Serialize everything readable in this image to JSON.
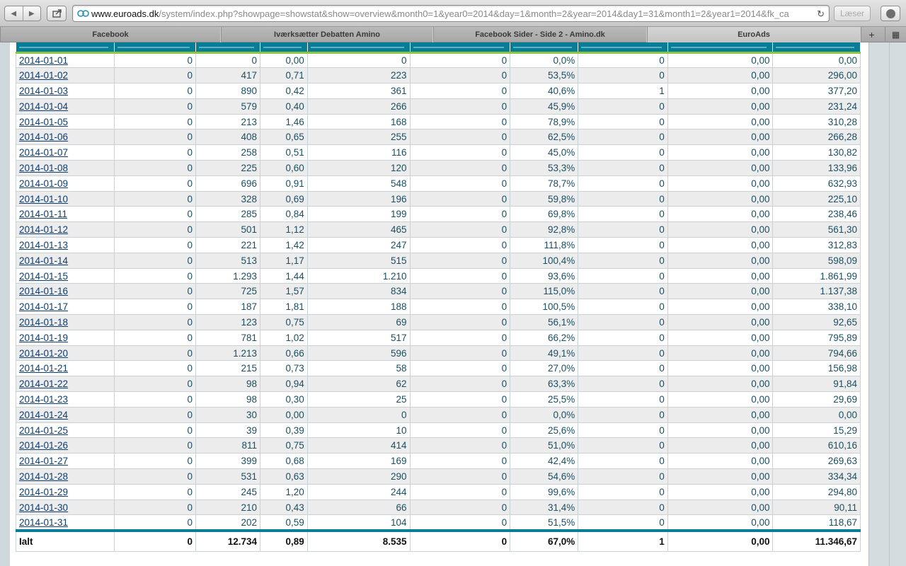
{
  "browser": {
    "url_host": "www.euroads.dk",
    "url_path": "/system/index.php?showpage=showstat&show=overview&month0=1&year0=2014&day=1&month=2&year=2014&day1=31&month1=2&year1=2014&fk_ca",
    "reader_label": "Læser",
    "tabs": [
      {
        "label": "Facebook"
      },
      {
        "label": "Iværksætter Debatten Amino"
      },
      {
        "label": "Facebook Sider - Side 2 - Amino.dk"
      },
      {
        "label": "EuroAds"
      }
    ]
  },
  "table": {
    "rows": [
      [
        "2014-01-01",
        "0",
        "0",
        "0,00",
        "0",
        "0",
        "0,0%",
        "0",
        "0,00",
        "0,00"
      ],
      [
        "2014-01-02",
        "0",
        "417",
        "0,71",
        "223",
        "0",
        "53,5%",
        "0",
        "0,00",
        "296,00"
      ],
      [
        "2014-01-03",
        "0",
        "890",
        "0,42",
        "361",
        "0",
        "40,6%",
        "1",
        "0,00",
        "377,20"
      ],
      [
        "2014-01-04",
        "0",
        "579",
        "0,40",
        "266",
        "0",
        "45,9%",
        "0",
        "0,00",
        "231,24"
      ],
      [
        "2014-01-05",
        "0",
        "213",
        "1,46",
        "168",
        "0",
        "78,9%",
        "0",
        "0,00",
        "310,28"
      ],
      [
        "2014-01-06",
        "0",
        "408",
        "0,65",
        "255",
        "0",
        "62,5%",
        "0",
        "0,00",
        "266,28"
      ],
      [
        "2014-01-07",
        "0",
        "258",
        "0,51",
        "116",
        "0",
        "45,0%",
        "0",
        "0,00",
        "130,82"
      ],
      [
        "2014-01-08",
        "0",
        "225",
        "0,60",
        "120",
        "0",
        "53,3%",
        "0",
        "0,00",
        "133,96"
      ],
      [
        "2014-01-09",
        "0",
        "696",
        "0,91",
        "548",
        "0",
        "78,7%",
        "0",
        "0,00",
        "632,93"
      ],
      [
        "2014-01-10",
        "0",
        "328",
        "0,69",
        "196",
        "0",
        "59,8%",
        "0",
        "0,00",
        "225,10"
      ],
      [
        "2014-01-11",
        "0",
        "285",
        "0,84",
        "199",
        "0",
        "69,8%",
        "0",
        "0,00",
        "238,46"
      ],
      [
        "2014-01-12",
        "0",
        "501",
        "1,12",
        "465",
        "0",
        "92,8%",
        "0",
        "0,00",
        "561,30"
      ],
      [
        "2014-01-13",
        "0",
        "221",
        "1,42",
        "247",
        "0",
        "111,8%",
        "0",
        "0,00",
        "312,83"
      ],
      [
        "2014-01-14",
        "0",
        "513",
        "1,17",
        "515",
        "0",
        "100,4%",
        "0",
        "0,00",
        "598,09"
      ],
      [
        "2014-01-15",
        "0",
        "1.293",
        "1,44",
        "1.210",
        "0",
        "93,6%",
        "0",
        "0,00",
        "1.861,99"
      ],
      [
        "2014-01-16",
        "0",
        "725",
        "1,57",
        "834",
        "0",
        "115,0%",
        "0",
        "0,00",
        "1.137,38"
      ],
      [
        "2014-01-17",
        "0",
        "187",
        "1,81",
        "188",
        "0",
        "100,5%",
        "0",
        "0,00",
        "338,10"
      ],
      [
        "2014-01-18",
        "0",
        "123",
        "0,75",
        "69",
        "0",
        "56,1%",
        "0",
        "0,00",
        "92,65"
      ],
      [
        "2014-01-19",
        "0",
        "781",
        "1,02",
        "517",
        "0",
        "66,2%",
        "0",
        "0,00",
        "795,89"
      ],
      [
        "2014-01-20",
        "0",
        "1.213",
        "0,66",
        "596",
        "0",
        "49,1%",
        "0",
        "0,00",
        "794,66"
      ],
      [
        "2014-01-21",
        "0",
        "215",
        "0,73",
        "58",
        "0",
        "27,0%",
        "0",
        "0,00",
        "156,98"
      ],
      [
        "2014-01-22",
        "0",
        "98",
        "0,94",
        "62",
        "0",
        "63,3%",
        "0",
        "0,00",
        "91,84"
      ],
      [
        "2014-01-23",
        "0",
        "98",
        "0,30",
        "25",
        "0",
        "25,5%",
        "0",
        "0,00",
        "29,69"
      ],
      [
        "2014-01-24",
        "0",
        "30",
        "0,00",
        "0",
        "0",
        "0,0%",
        "0",
        "0,00",
        "0,00"
      ],
      [
        "2014-01-25",
        "0",
        "39",
        "0,39",
        "10",
        "0",
        "25,6%",
        "0",
        "0,00",
        "15,29"
      ],
      [
        "2014-01-26",
        "0",
        "811",
        "0,75",
        "414",
        "0",
        "51,0%",
        "0",
        "0,00",
        "610,16"
      ],
      [
        "2014-01-27",
        "0",
        "399",
        "0,68",
        "169",
        "0",
        "42,4%",
        "0",
        "0,00",
        "269,63"
      ],
      [
        "2014-01-28",
        "0",
        "531",
        "0,63",
        "290",
        "0",
        "54,6%",
        "0",
        "0,00",
        "334,34"
      ],
      [
        "2014-01-29",
        "0",
        "245",
        "1,20",
        "244",
        "0",
        "99,6%",
        "0",
        "0,00",
        "294,80"
      ],
      [
        "2014-01-30",
        "0",
        "210",
        "0,43",
        "66",
        "0",
        "31,4%",
        "0",
        "0,00",
        "90,11"
      ],
      [
        "2014-01-31",
        "0",
        "202",
        "0,59",
        "104",
        "0",
        "51,5%",
        "0",
        "0,00",
        "118,67"
      ]
    ],
    "total": [
      "Ialt",
      "0",
      "12.734",
      "0,89",
      "8.535",
      "0",
      "67,0%",
      "1",
      "0,00",
      "11.346,67"
    ]
  },
  "colors": {
    "header": "#087d98",
    "header_accent": "#8cc63f",
    "link": "#0e3d6e"
  }
}
